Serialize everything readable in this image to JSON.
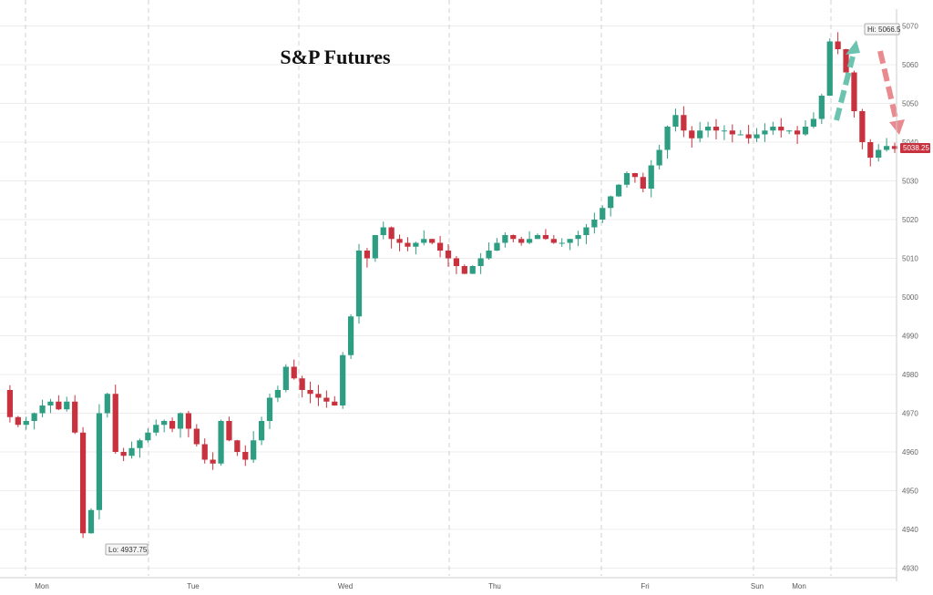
{
  "chart_data": {
    "type": "line",
    "title": "S&P Futures",
    "xlabel": "",
    "ylabel": "",
    "y_tick_labels": [
      "4930",
      "4940",
      "4950",
      "4960",
      "4970",
      "4980",
      "4990",
      "5000",
      "5010",
      "5020",
      "5030",
      "5040",
      "5050",
      "5060",
      "5070"
    ],
    "ylim": [
      4928,
      5072
    ],
    "x_tick_labels": [
      "Mon",
      "Tue",
      "Wed",
      "Thu",
      "Fri",
      "Sun",
      "Mon"
    ],
    "grid": true,
    "series": [
      {
        "name": "",
        "x": [
          0,
          1,
          2,
          3,
          4,
          5,
          6,
          7,
          8,
          9,
          10,
          11,
          12,
          13,
          14,
          15,
          16,
          17,
          18,
          19,
          20,
          21,
          22,
          23,
          24,
          25,
          26,
          27,
          28,
          29,
          30,
          31,
          32,
          33,
          34,
          35,
          36,
          37,
          38,
          39,
          40,
          41,
          42,
          43,
          44,
          45,
          46,
          47,
          48,
          49,
          50,
          51,
          52,
          53,
          54,
          55,
          56,
          57,
          58,
          59,
          60,
          61,
          62,
          63,
          64,
          65,
          66,
          67,
          68,
          69,
          70,
          71,
          72,
          73,
          74,
          75,
          76,
          77,
          78,
          79,
          80,
          81,
          82,
          83,
          84,
          85,
          86,
          87,
          88,
          89,
          90,
          91,
          92,
          93,
          94,
          95,
          96,
          97,
          98,
          99,
          100,
          101,
          102,
          103,
          104,
          105,
          106,
          107,
          108,
          109,
          110
        ],
        "values": [
          4976,
          4969,
          4967,
          4968,
          4970,
          4972,
          4973,
          4971,
          4973,
          4965,
          4939,
          4945,
          4970,
          4975,
          4960,
          4959,
          4961,
          4963,
          4965,
          4967,
          4968,
          4966,
          4970,
          4966,
          4962,
          4958,
          4957,
          4968,
          4963,
          4960,
          4958,
          4963,
          4968,
          4974,
          4976,
          4982,
          4979,
          4976,
          4975,
          4974,
          4973,
          4972,
          4985,
          4995,
          5012,
          5010,
          5016,
          5018,
          5015,
          5014,
          5013,
          5014,
          5015,
          5014,
          5012,
          5010,
          5008,
          5006,
          5008,
          5010,
          5012,
          5014,
          5016,
          5015,
          5014,
          5015,
          5016,
          5015,
          5014,
          5014,
          5015,
          5016,
          5018,
          5020,
          5023,
          5026,
          5029,
          5032,
          5031,
          5028,
          5034,
          5038,
          5044,
          5047,
          5043,
          5041,
          5043,
          5044,
          5043,
          5043,
          5042,
          5042,
          5041,
          5042,
          5043,
          5044,
          5043,
          5043,
          5042,
          5044,
          5046,
          5052,
          5066,
          5064,
          5058,
          5048,
          5040,
          5036,
          5038,
          5039,
          5038.25
        ]
      }
    ],
    "annotations": {
      "high_label": "Hi: 5066.5",
      "low_label": "Lo: 4937.75",
      "last_price_label": "5038.25"
    }
  },
  "colors": {
    "up": "#2e9e83",
    "down": "#c8323e",
    "arrow_up": "#6cc3b0",
    "arrow_down": "#e88a8f",
    "price_tag": "#c8323e"
  }
}
